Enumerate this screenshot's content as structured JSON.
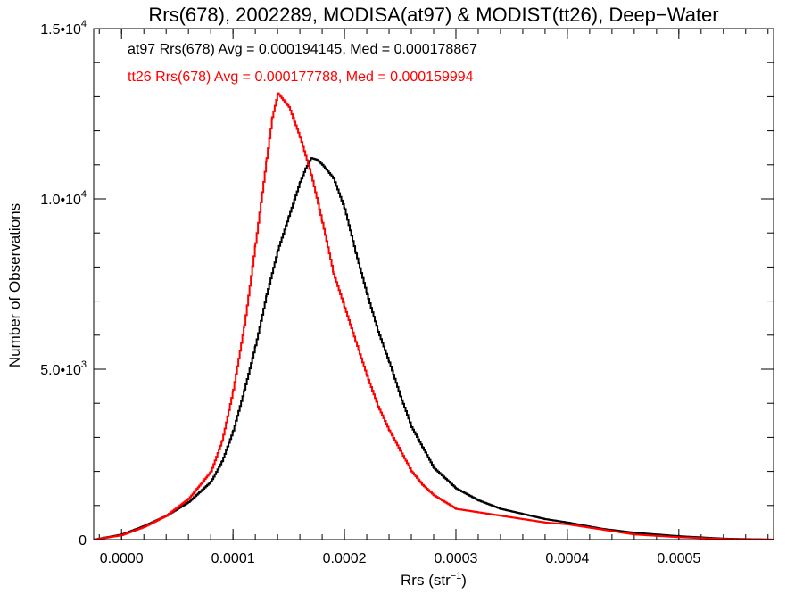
{
  "chart_data": {
    "type": "line",
    "style": "histogram-step",
    "title": "Rrs(678), 2002289, MODISA(at97) & MODIST(tt26), Deep−Water",
    "xlabel": {
      "base": "Rrs (str",
      "sup": "−1",
      "close": ")"
    },
    "ylabel": "Number of Observations",
    "xlim": [
      -2.5e-05,
      0.000585
    ],
    "ylim": [
      0,
      15000
    ],
    "x_ticks": [
      {
        "value": 0.0,
        "label": "0.0000"
      },
      {
        "value": 0.0001,
        "label": "0.0001"
      },
      {
        "value": 0.0002,
        "label": "0.0002"
      },
      {
        "value": 0.0003,
        "label": "0.0003"
      },
      {
        "value": 0.0004,
        "label": "0.0004"
      },
      {
        "value": 0.0005,
        "label": "0.0005"
      }
    ],
    "y_ticks": [
      {
        "value": 0,
        "label": "0",
        "exp": ""
      },
      {
        "value": 5000,
        "label": "5.0•10",
        "exp": "3"
      },
      {
        "value": 10000,
        "label": "1.0•10",
        "exp": "4"
      },
      {
        "value": 15000,
        "label": "1.5•10",
        "exp": "4"
      }
    ],
    "x_minor_step": 2e-05,
    "y_minor_step": 1000,
    "annotations": [
      {
        "text": "at97 Rrs(678) Avg = 0.000194145, Med = 0.000178867",
        "color": "#000000"
      },
      {
        "text": "tt26 Rrs(678) Avg = 0.000177788, Med = 0.000159994",
        "color": "#ff0000"
      }
    ],
    "series": [
      {
        "color": "#000000",
        "x": [
          -2.5e-05,
          0.0,
          2e-05,
          4e-05,
          6e-05,
          8e-05,
          9e-05,
          0.0001,
          0.00011,
          0.00012,
          0.00013,
          0.00014,
          0.00015,
          0.00016,
          0.000165,
          0.00017,
          0.000175,
          0.00018,
          0.00019,
          0.0002,
          0.00021,
          0.00022,
          0.00023,
          0.00024,
          0.00025,
          0.00026,
          0.00027,
          0.00028,
          0.0003,
          0.00032,
          0.00034,
          0.00036,
          0.00038,
          0.0004,
          0.00043,
          0.00046,
          0.0005,
          0.00054,
          0.000585
        ],
        "y": [
          0,
          150,
          400,
          700,
          1100,
          1700,
          2300,
          3200,
          4400,
          5700,
          7200,
          8500,
          9500,
          10500,
          10900,
          11200,
          11150,
          11000,
          10600,
          9700,
          8400,
          7200,
          6100,
          5200,
          4200,
          3300,
          2700,
          2100,
          1500,
          1150,
          900,
          750,
          600,
          500,
          320,
          200,
          100,
          30,
          0
        ]
      },
      {
        "color": "#ff0000",
        "x": [
          -2.5e-05,
          0.0,
          2e-05,
          4e-05,
          6e-05,
          8e-05,
          9e-05,
          0.0001,
          0.00011,
          0.00012,
          0.00013,
          0.000135,
          0.00014,
          0.000145,
          0.00015,
          0.00016,
          0.00017,
          0.00018,
          0.00019,
          0.0002,
          0.00021,
          0.00022,
          0.00023,
          0.00024,
          0.00025,
          0.00026,
          0.00027,
          0.00028,
          0.0003,
          0.00032,
          0.00034,
          0.00036,
          0.00038,
          0.0004,
          0.00043,
          0.00046,
          0.0005,
          0.00054,
          0.000585
        ],
        "y": [
          0,
          130,
          370,
          700,
          1200,
          2000,
          2900,
          4400,
          6300,
          8700,
          11200,
          12400,
          13100,
          12900,
          12700,
          11800,
          10700,
          9300,
          7800,
          6800,
          5800,
          4800,
          3900,
          3200,
          2600,
          2000,
          1600,
          1300,
          900,
          800,
          700,
          600,
          500,
          450,
          300,
          150,
          70,
          20,
          0
        ]
      }
    ]
  }
}
